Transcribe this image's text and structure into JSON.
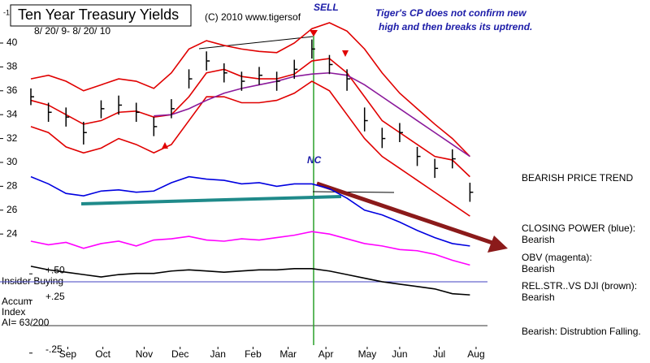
{
  "chart_data": {
    "type": "hlc",
    "title": "Ten Year Treasury Yields",
    "subtitle": "8/ 20/ 9- 8/ 20/ 10",
    "copyright": "(C) 2010 www.tigersof",
    "corner": "-1",
    "annotations": {
      "sell": "SELL",
      "nc": "NC",
      "comment": [
        "Tiger's CP does not confirm new",
        "high and then breaks its uptrend."
      ],
      "insider": "Insider Buying",
      "accum": [
        "Accum",
        "Index",
        "AI= 63/200"
      ]
    },
    "side_notes": [
      "BEARISH PRICE TREND",
      "CLOSING POWER (blue):",
      "Bearish",
      "OBV (magenta):",
      "Bearish",
      "REL.STR..VS DJI (brown):",
      "Bearish",
      "Bearish: Distrubtion Falling."
    ],
    "x": [
      0,
      2,
      4,
      6,
      8,
      10,
      12,
      14,
      16,
      18,
      20,
      22,
      24,
      26,
      28,
      30,
      32,
      34,
      36,
      38,
      40,
      42,
      44,
      46,
      48,
      50
    ],
    "xlim": [
      0,
      52
    ],
    "xticks": [
      {
        "value": 4.2,
        "label": "Sep"
      },
      {
        "value": 8.2,
        "label": "Oct"
      },
      {
        "value": 12.9,
        "label": "Nov"
      },
      {
        "value": 17,
        "label": "Dec"
      },
      {
        "value": 21.3,
        "label": "Jan"
      },
      {
        "value": 25.3,
        "label": "Feb"
      },
      {
        "value": 29.3,
        "label": "Mar"
      },
      {
        "value": 33.6,
        "label": "Apr"
      },
      {
        "value": 38.3,
        "label": "May"
      },
      {
        "value": 42,
        "label": "Jun"
      },
      {
        "value": 46.5,
        "label": "Jul"
      },
      {
        "value": 50.7,
        "label": "Aug"
      }
    ],
    "ylim": [
      13.67,
      42.79
    ],
    "yticks": [
      40,
      38,
      36,
      34,
      32,
      30,
      28,
      26,
      24
    ],
    "y2lim": [
      -0.29,
      3.0
    ],
    "y2ticks": [
      {
        "value": 0.5,
        "label": "+.50"
      },
      {
        "value": 0.25,
        "label": "+.25"
      },
      {
        "value": -0.25,
        "label": "-.25"
      }
    ],
    "price": {
      "color": "#000000",
      "close": [
        35.5,
        34.2,
        33.8,
        32.5,
        34.5,
        34.8,
        34.2,
        33.0,
        34.5,
        37.0,
        38.5,
        37.5,
        36.8,
        37.3,
        36.8,
        37.8,
        39.5,
        38.2,
        37.0,
        33.5,
        32.0,
        32.5,
        30.5,
        29.5,
        30.3,
        27.5
      ],
      "high": [
        36.2,
        35.0,
        34.6,
        33.4,
        35.2,
        35.6,
        35.0,
        33.8,
        35.3,
        37.8,
        39.3,
        38.3,
        37.6,
        38.0,
        37.6,
        38.6,
        40.3,
        39.0,
        37.8,
        34.6,
        32.9,
        33.3,
        31.3,
        30.3,
        31.1,
        28.3
      ],
      "low": [
        34.8,
        33.4,
        33.0,
        31.5,
        33.7,
        34.0,
        33.4,
        32.2,
        33.7,
        36.2,
        37.7,
        36.7,
        36.0,
        36.5,
        36.0,
        37.0,
        38.7,
        37.4,
        36.0,
        32.6,
        31.2,
        31.7,
        29.7,
        28.7,
        29.5,
        26.7
      ]
    },
    "series": [
      {
        "color": "#e00000",
        "values": [
          37.0,
          37.3,
          36.8,
          36.0,
          36.5,
          37.0,
          36.8,
          36.2,
          37.5,
          39.5,
          40.2,
          39.8,
          39.5,
          39.3,
          39.2,
          40.0,
          41.2,
          41.7,
          41.0,
          39.5,
          37.5,
          35.8,
          34.5,
          33.2,
          32.0,
          30.5
        ]
      },
      {
        "color": "#e00000",
        "values": [
          33.0,
          32.5,
          31.3,
          30.8,
          31.2,
          32.0,
          31.5,
          30.8,
          31.5,
          33.5,
          35.5,
          35.5,
          35.0,
          35.0,
          35.2,
          35.8,
          36.8,
          36.0,
          34.0,
          32.0,
          30.5,
          29.5,
          28.5,
          27.5,
          26.5,
          25.5
        ]
      },
      {
        "color": "#e00000",
        "values": [
          35.2,
          34.8,
          34.0,
          33.2,
          33.5,
          34.2,
          34.3,
          33.8,
          34.0,
          35.5,
          37.5,
          37.8,
          37.2,
          37.0,
          37.0,
          37.4,
          38.5,
          38.7,
          37.5,
          35.5,
          33.5,
          32.5,
          31.5,
          30.5,
          30.2,
          28.8
        ]
      },
      {
        "color": "#8b1a9b",
        "values": [
          null,
          null,
          null,
          null,
          null,
          null,
          null,
          33.9,
          34.0,
          34.5,
          35.2,
          35.8,
          36.2,
          36.5,
          36.8,
          37.2,
          37.4,
          37.5,
          37.3,
          36.5,
          35.5,
          34.5,
          33.5,
          32.5,
          31.5,
          30.5
        ]
      },
      {
        "color": "#0000e0",
        "values": [
          28.8,
          28.2,
          27.4,
          27.2,
          27.6,
          27.7,
          27.5,
          27.6,
          28.3,
          28.8,
          28.6,
          28.5,
          28.2,
          28.3,
          28.0,
          28.2,
          28.2,
          27.8,
          27.0,
          26.0,
          25.6,
          25.0,
          24.3,
          23.7,
          23.2,
          23.0
        ]
      },
      {
        "color": "#ff00ff",
        "values": [
          23.4,
          23.1,
          23.3,
          22.8,
          23.2,
          23.4,
          23.0,
          23.5,
          23.6,
          23.8,
          23.5,
          23.4,
          23.6,
          23.5,
          23.7,
          23.9,
          24.2,
          24.0,
          23.6,
          23.2,
          23.0,
          22.7,
          22.6,
          22.3,
          21.8,
          21.4
        ]
      },
      {
        "color": "#000000",
        "values": [
          21.3,
          21.0,
          20.8,
          20.6,
          20.4,
          20.6,
          20.7,
          20.7,
          20.9,
          21.0,
          20.9,
          20.8,
          20.9,
          21.0,
          21.0,
          21.1,
          21.1,
          20.9,
          20.6,
          20.3,
          20.0,
          19.8,
          19.6,
          19.4,
          19.0,
          18.9
        ]
      }
    ]
  }
}
